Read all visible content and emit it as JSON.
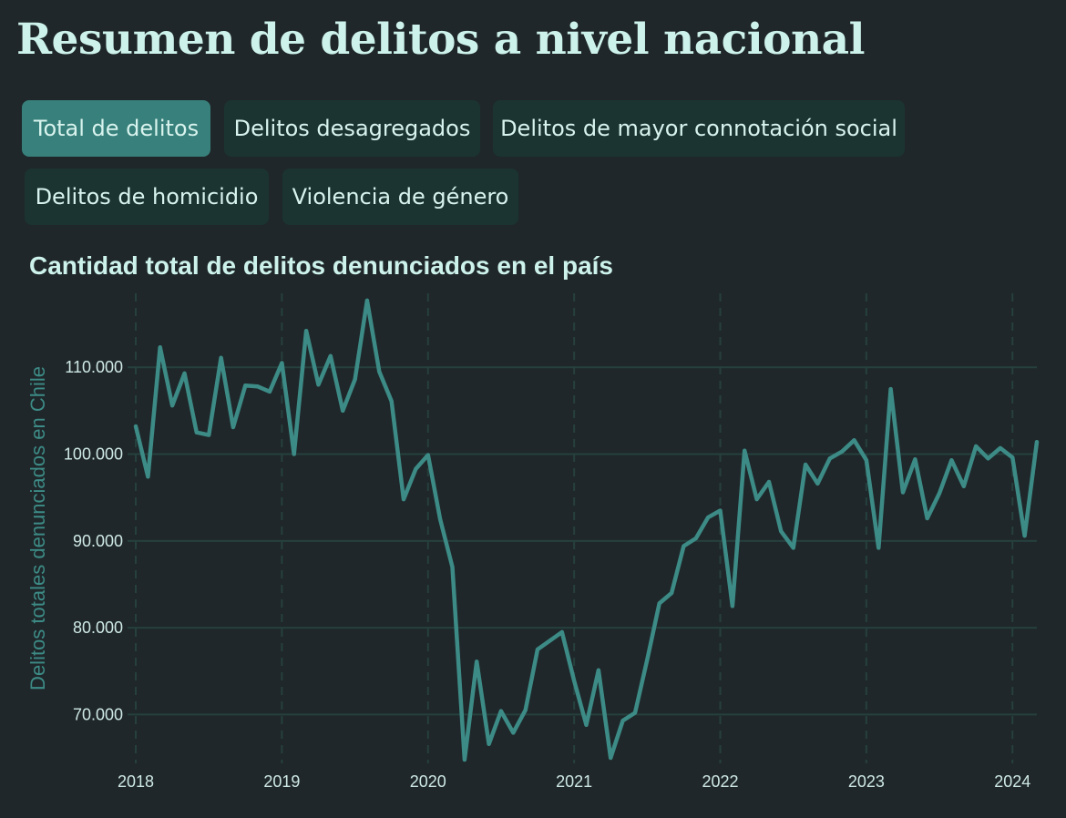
{
  "page": {
    "title": "Resumen de delitos a nivel nacional"
  },
  "tabs": [
    {
      "label": "Total de delitos",
      "active": true
    },
    {
      "label": "Delitos desagregados",
      "active": false
    },
    {
      "label": "Delitos de mayor connotación social",
      "active": false
    },
    {
      "label": "Delitos de homicidio",
      "active": false
    },
    {
      "label": "Violencia de género",
      "active": false
    }
  ],
  "colors": {
    "background": "#1f272a",
    "tab_active": "#38807b",
    "tab_inactive": "#1b3432",
    "line": "#3d8b86",
    "grid": "#26403e"
  },
  "chart_data": {
    "type": "line",
    "title": "Cantidad total de delitos denunciados en el país",
    "xlabel": "",
    "ylabel": "Delitos totales denunciados en Chile",
    "xticks": [
      "2018",
      "2019",
      "2020",
      "2021",
      "2022",
      "2023",
      "2024"
    ],
    "yticks": [
      70000,
      80000,
      90000,
      100000,
      110000
    ],
    "ytick_labels": [
      "70.000",
      "80.000",
      "90.000",
      "100.000",
      "110.000"
    ],
    "xlim": [
      "2018-01",
      "2024-03"
    ],
    "ylim": [
      64900,
      118000
    ],
    "grid": true,
    "series": [
      {
        "x": [
          "2018-01",
          "2018-02",
          "2018-03",
          "2018-04",
          "2018-05",
          "2018-06",
          "2018-07",
          "2018-08",
          "2018-09",
          "2018-10",
          "2018-11",
          "2018-12",
          "2019-01",
          "2019-02",
          "2019-03",
          "2019-04",
          "2019-05",
          "2019-06",
          "2019-07",
          "2019-08",
          "2019-09",
          "2019-10",
          "2019-11",
          "2019-12",
          "2020-01",
          "2020-02",
          "2020-03",
          "2020-04",
          "2020-05",
          "2020-06",
          "2020-07",
          "2020-08",
          "2020-09",
          "2020-10",
          "2020-11",
          "2020-12",
          "2021-01",
          "2021-02",
          "2021-03",
          "2021-04",
          "2021-05",
          "2021-06",
          "2021-07",
          "2021-08",
          "2021-09",
          "2021-10",
          "2021-11",
          "2021-12",
          "2022-01",
          "2022-02",
          "2022-03",
          "2022-04",
          "2022-05",
          "2022-06",
          "2022-07",
          "2022-08",
          "2022-09",
          "2022-10",
          "2022-11",
          "2022-12",
          "2023-01",
          "2023-02",
          "2023-03",
          "2023-04",
          "2023-05",
          "2023-06",
          "2023-07",
          "2023-08",
          "2023-09",
          "2023-10",
          "2023-11",
          "2023-12",
          "2024-01",
          "2024-02",
          "2024-03"
        ],
        "values": [
          103200,
          97400,
          112300,
          105600,
          109300,
          102500,
          102200,
          111100,
          103100,
          107900,
          107800,
          107200,
          110500,
          100000,
          114200,
          108000,
          111300,
          105000,
          108600,
          117700,
          109500,
          106100,
          94800,
          98300,
          99900,
          92500,
          87000,
          64800,
          76100,
          66600,
          70400,
          67900,
          70500,
          77500,
          78500,
          79500,
          73900,
          68800,
          75100,
          65000,
          69300,
          70200,
          76300,
          82800,
          84000,
          89400,
          90300,
          92700,
          93500,
          82500,
          100400,
          94800,
          96800,
          91100,
          89200,
          98800,
          96600,
          99500,
          100300,
          101600,
          99300,
          89200,
          107500,
          95600,
          99400,
          92600,
          95500,
          99300,
          96300,
          100900,
          99500,
          100700,
          99600,
          90600,
          101400
        ]
      }
    ]
  }
}
